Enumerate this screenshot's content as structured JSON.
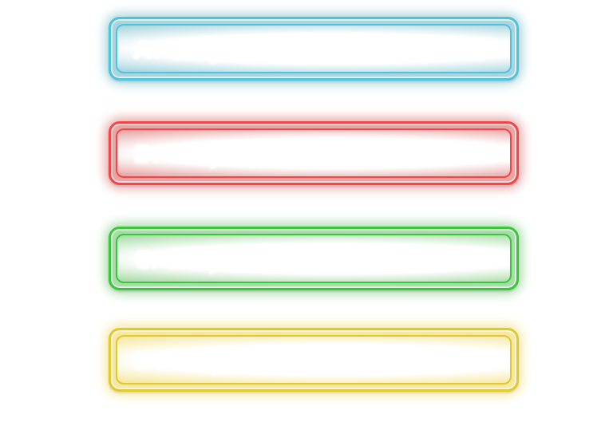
{
  "options": [
    {
      "label": "A.  59 percent",
      "color": "#4fc3dc",
      "glow": "#a9d6de"
    },
    {
      "label": "B.  44 percent",
      "color": "#f04848",
      "glow": "#e8a5a5"
    },
    {
      "label": "C.  31 percent",
      "color": "#3cc43c",
      "glow": "#a8dca8"
    },
    {
      "label": "D.  20 percent",
      "color": "#e0c830",
      "glow": "#f6e8a0"
    }
  ]
}
